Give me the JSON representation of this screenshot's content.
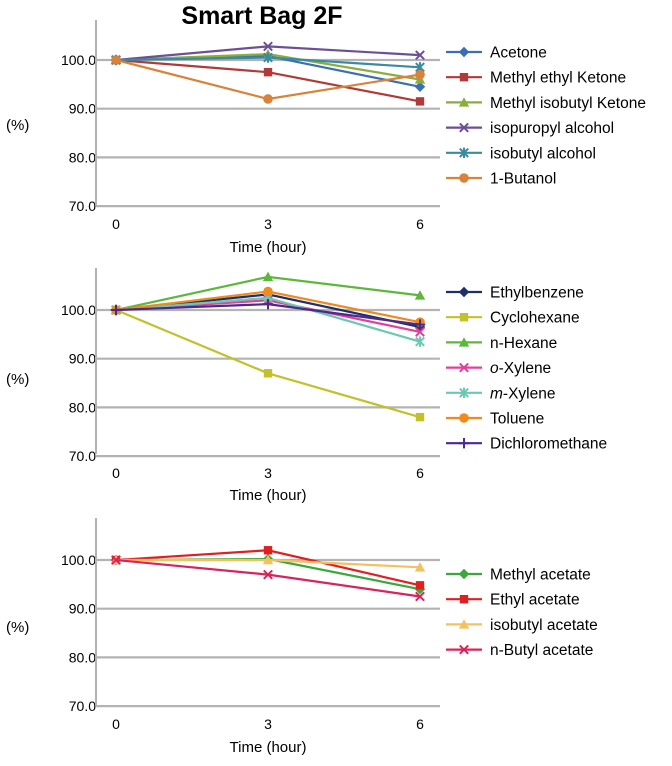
{
  "title": "Smart Bag 2F",
  "chart_data": [
    {
      "type": "line",
      "ylabel": "(%)",
      "xlabel": "Time (hour)",
      "x": [
        0,
        3,
        6
      ],
      "ylim": [
        70,
        110
      ],
      "yticks": [
        "70.0",
        "80.0",
        "90.0",
        "100.0"
      ],
      "ytick_values": [
        70,
        80,
        90,
        100
      ],
      "xticks": [
        "0",
        "3",
        "6"
      ],
      "legend_position": "right",
      "series": [
        {
          "name": "Acetone",
          "values": [
            100,
            100.8,
            94.5
          ],
          "color": "#3a6fb5",
          "marker": "diamond"
        },
        {
          "name": "Methyl ethyl Ketone",
          "values": [
            100,
            97.5,
            91.5
          ],
          "color": "#b03a3a",
          "marker": "square"
        },
        {
          "name": "Methyl isobutyl Ketone",
          "values": [
            100,
            101.2,
            96
          ],
          "color": "#8aae3c",
          "marker": "triangle"
        },
        {
          "name": "isopuropyl alcohol",
          "values": [
            100,
            102.8,
            101
          ],
          "color": "#6e4f96",
          "marker": "x"
        },
        {
          "name": "isobutyl alcohol",
          "values": [
            100,
            100.5,
            98.5
          ],
          "color": "#3a8aa0",
          "marker": "asterisk"
        },
        {
          "name": "1-Butanol",
          "values": [
            100,
            92,
            97
          ],
          "color": "#d9823a",
          "marker": "circle"
        }
      ]
    },
    {
      "type": "line",
      "ylabel": "(%)",
      "xlabel": "Time (hour)",
      "x": [
        0,
        3,
        6
      ],
      "ylim": [
        70,
        110
      ],
      "yticks": [
        "70.0",
        "80.0",
        "90.0",
        "100.0"
      ],
      "ytick_values": [
        70,
        80,
        90,
        100
      ],
      "xticks": [
        "0",
        "3",
        "6"
      ],
      "legend_position": "right",
      "series": [
        {
          "name": "Ethylbenzene",
          "values": [
            100,
            103.2,
            96.5
          ],
          "color": "#1f2f6e",
          "marker": "diamond"
        },
        {
          "name": "Cyclohexane",
          "values": [
            100,
            87,
            78
          ],
          "color": "#c2c12a",
          "marker": "square"
        },
        {
          "name": "n-Hexane",
          "values": [
            100,
            106.8,
            103
          ],
          "color": "#5cb83a",
          "marker": "triangle"
        },
        {
          "name_parts": [
            {
              "t": "o",
              "i": true
            },
            {
              "t": "-Xylene",
              "i": false
            }
          ],
          "values": [
            100,
            102,
            95.5
          ],
          "color": "#e0409a",
          "marker": "x"
        },
        {
          "name_parts": [
            {
              "t": "m",
              "i": true
            },
            {
              "t": "-Xylene",
              "i": false
            }
          ],
          "values": [
            100,
            102.5,
            93.5
          ],
          "color": "#6cc8b0",
          "marker": "asterisk"
        },
        {
          "name": "Toluene",
          "values": [
            100,
            103.8,
            97.5
          ],
          "color": "#f08a1c",
          "marker": "circle"
        },
        {
          "name": "Dichloromethane",
          "values": [
            100,
            101.2,
            97
          ],
          "color": "#4a2a8c",
          "marker": "plus"
        }
      ]
    },
    {
      "type": "line",
      "ylabel": "(%)",
      "xlabel": "Time (hour)",
      "x": [
        0,
        3,
        6
      ],
      "ylim": [
        70,
        110
      ],
      "yticks": [
        "70.0",
        "80.0",
        "90.0",
        "100.0"
      ],
      "ytick_values": [
        70,
        80,
        90,
        100
      ],
      "xticks": [
        "0",
        "3",
        "6"
      ],
      "legend_position": "right",
      "series": [
        {
          "name": "Methyl acetate",
          "values": [
            100,
            100.2,
            94
          ],
          "color": "#3aa83a",
          "marker": "diamond"
        },
        {
          "name": "Ethyl acetate",
          "values": [
            100,
            102,
            94.8
          ],
          "color": "#e02020",
          "marker": "square"
        },
        {
          "name": "isobutyl acetate",
          "values": [
            100,
            100,
            98.5
          ],
          "color": "#f5c060",
          "marker": "triangle"
        },
        {
          "name": "n-Butyl acetate",
          "values": [
            100,
            97,
            92.5
          ],
          "color": "#d8245a",
          "marker": "x"
        }
      ]
    }
  ]
}
